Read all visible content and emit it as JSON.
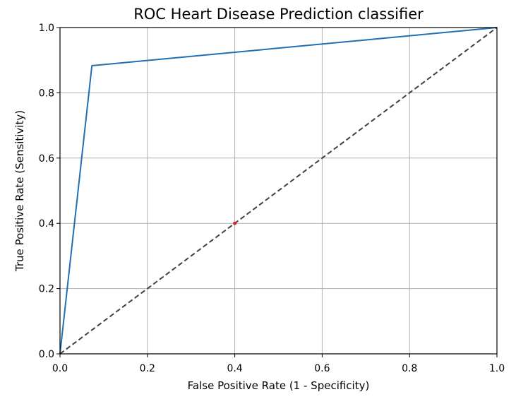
{
  "chart_data": {
    "type": "line",
    "title": "ROC Heart Disease Prediction classifier",
    "xlabel": "False Positive Rate (1 - Specificity)",
    "ylabel": "True Positive Rate (Sensitivity)",
    "xlim": [
      0.0,
      1.0
    ],
    "ylim": [
      0.0,
      1.0
    ],
    "xticks": [
      "0.0",
      "0.2",
      "0.4",
      "0.6",
      "0.8",
      "1.0"
    ],
    "yticks": [
      "0.0",
      "0.2",
      "0.4",
      "0.6",
      "0.8",
      "1.0"
    ],
    "grid": true,
    "series": [
      {
        "style": "solid",
        "color": "#1f6fb4",
        "x": [
          0.0,
          0.073,
          1.0
        ],
        "y": [
          0.0,
          0.883,
          1.0
        ]
      },
      {
        "style": "dashed",
        "color": "#404040",
        "x": [
          0.0,
          1.0
        ],
        "y": [
          0.0,
          1.0
        ]
      }
    ],
    "markers": [
      {
        "x": 0.4,
        "y": 0.4,
        "color": "#d62728"
      }
    ]
  }
}
